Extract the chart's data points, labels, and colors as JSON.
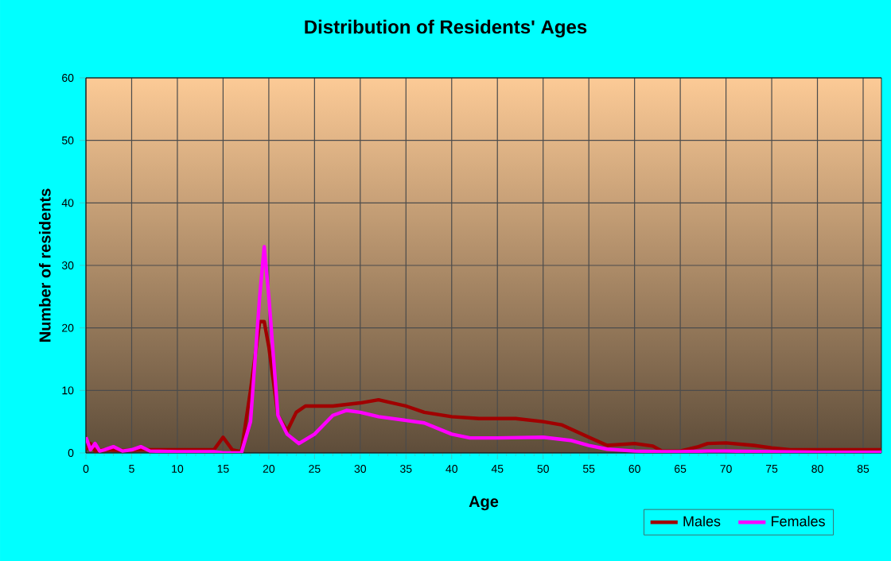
{
  "chart_data": {
    "type": "line",
    "title": "Distribution of Residents' Ages",
    "xlabel": "Age",
    "ylabel": "Number of residents",
    "xlim": [
      0,
      87
    ],
    "ylim": [
      0,
      60
    ],
    "xticks": [
      0,
      5,
      10,
      15,
      20,
      25,
      30,
      35,
      40,
      45,
      50,
      55,
      60,
      65,
      70,
      75,
      80,
      85
    ],
    "yticks": [
      0,
      10,
      20,
      30,
      40,
      50,
      60
    ],
    "grid": true,
    "legend": "bottom right",
    "line_style": "solid",
    "series": [
      {
        "name": "Males",
        "color": "#a00000",
        "x": [
          0,
          0.5,
          1,
          2,
          4,
          6,
          10,
          14,
          15,
          16,
          17,
          18,
          19,
          19.5,
          20,
          21,
          22,
          23,
          24,
          25,
          27,
          30,
          32,
          35,
          37,
          40,
          43,
          47,
          50,
          52,
          55,
          57,
          60,
          62,
          63,
          65,
          67,
          68,
          70,
          73,
          75,
          77,
          80,
          87
        ],
        "values": [
          0.5,
          1.5,
          0.3,
          0.5,
          0.4,
          0.5,
          0.5,
          0.5,
          2.5,
          0.5,
          0.2,
          10,
          21,
          21,
          17,
          6,
          3.5,
          6.5,
          7.5,
          7.5,
          7.5,
          8,
          8.5,
          7.5,
          6.5,
          5.8,
          5.5,
          5.5,
          5,
          4.5,
          2.5,
          1.2,
          1.5,
          1.1,
          0.3,
          0.3,
          1,
          1.5,
          1.6,
          1.2,
          0.8,
          0.5,
          0.5,
          0.5
        ]
      },
      {
        "name": "Females",
        "color": "#ff00ff",
        "x": [
          0,
          0.5,
          1,
          1.5,
          2,
          3,
          4,
          5,
          6,
          7,
          10,
          14,
          15,
          17,
          18,
          19,
          19.5,
          20,
          21,
          22,
          23.3,
          25,
          27,
          28.5,
          30,
          32,
          35,
          37,
          40,
          42,
          45,
          50,
          53,
          55,
          57,
          60,
          63,
          65,
          68,
          70,
          75,
          80,
          87
        ],
        "values": [
          2.5,
          0.5,
          1.5,
          0.3,
          0.5,
          1,
          0.3,
          0.5,
          1,
          0.3,
          0.2,
          0.2,
          0,
          0,
          5,
          25,
          33,
          25,
          6,
          3,
          1.5,
          3,
          6,
          6.8,
          6.5,
          5.8,
          5.2,
          4.8,
          3,
          2.4,
          2.4,
          2.5,
          2,
          1.2,
          0.6,
          0.3,
          0.2,
          0.2,
          0.3,
          0.3,
          0.2,
          0.1,
          0.1
        ]
      }
    ]
  }
}
